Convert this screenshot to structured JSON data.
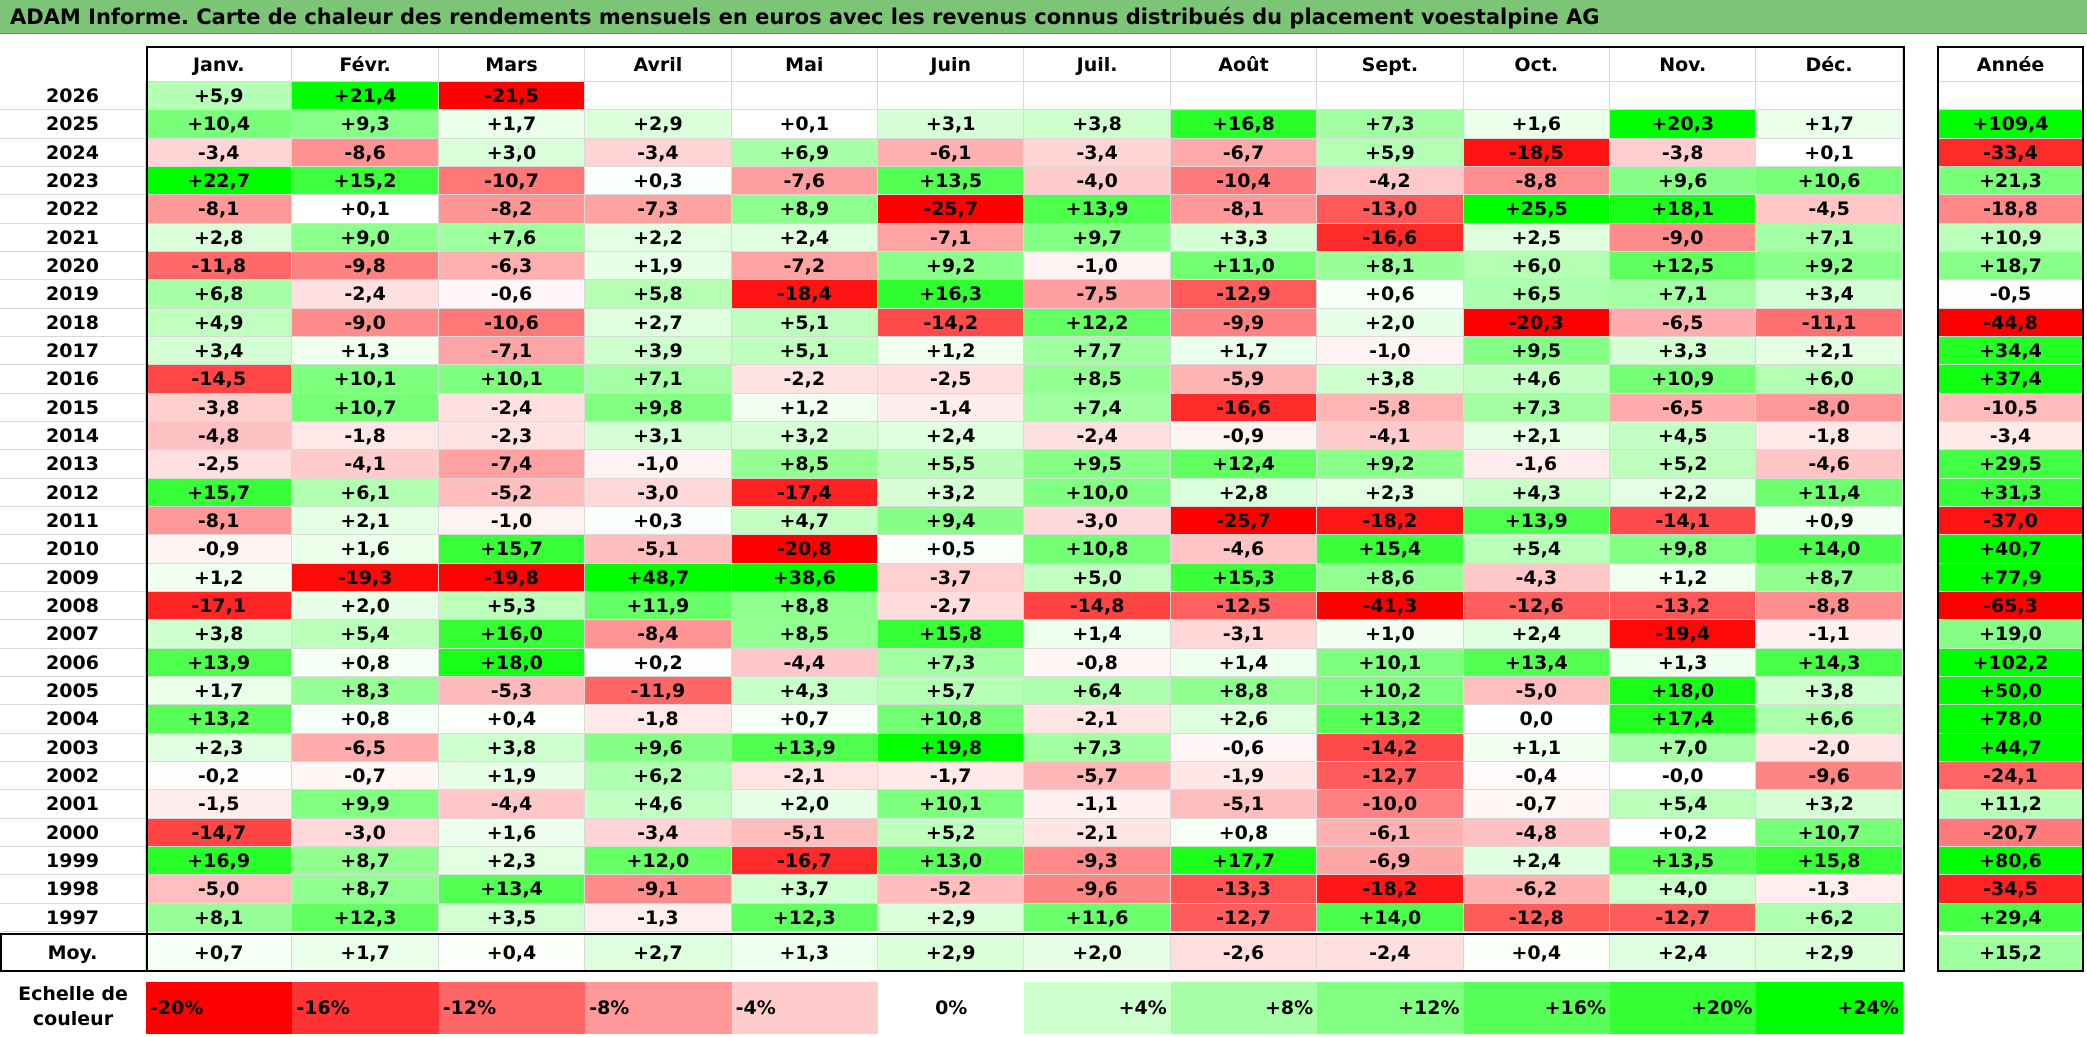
{
  "title": "ADAM Informe. Carte de chaleur des rendements mensuels en euros avec les revenus connus distribués du placement voestalpine AG",
  "chart_data": {
    "type": "heatmap",
    "title": "ADAM Informe. Carte de chaleur des rendements mensuels en euros avec les revenus connus distribués du placement voestalpine AG",
    "columns": [
      "Janv.",
      "Févr.",
      "Mars",
      "Avril",
      "Mai",
      "Juin",
      "Juil.",
      "Août",
      "Sept.",
      "Oct.",
      "Nov.",
      "Déc."
    ],
    "year_header": "Année",
    "rows": [
      {
        "year": "2026",
        "months": [
          "+5,9",
          "+21,4",
          "-21,5",
          "",
          "",
          "",
          "",
          "",
          "",
          "",
          "",
          ""
        ],
        "annual": ""
      },
      {
        "year": "2025",
        "months": [
          "+10,4",
          "+9,3",
          "+1,7",
          "+2,9",
          "+0,1",
          "+3,1",
          "+3,8",
          "+16,8",
          "+7,3",
          "+1,6",
          "+20,3",
          "+1,7"
        ],
        "annual": "+109,4"
      },
      {
        "year": "2024",
        "months": [
          "-3,4",
          "-8,6",
          "+3,0",
          "-3,4",
          "+6,9",
          "-6,1",
          "-3,4",
          "-6,7",
          "+5,9",
          "-18,5",
          "-3,8",
          "+0,1"
        ],
        "annual": "-33,4"
      },
      {
        "year": "2023",
        "months": [
          "+22,7",
          "+15,2",
          "-10,7",
          "+0,3",
          "-7,6",
          "+13,5",
          "-4,0",
          "-10,4",
          "-4,2",
          "-8,8",
          "+9,6",
          "+10,6"
        ],
        "annual": "+21,3"
      },
      {
        "year": "2022",
        "months": [
          "-8,1",
          "+0,1",
          "-8,2",
          "-7,3",
          "+8,9",
          "-25,7",
          "+13,9",
          "-8,1",
          "-13,0",
          "+25,5",
          "+18,1",
          "-4,5"
        ],
        "annual": "-18,8"
      },
      {
        "year": "2021",
        "months": [
          "+2,8",
          "+9,0",
          "+7,6",
          "+2,2",
          "+2,4",
          "-7,1",
          "+9,7",
          "+3,3",
          "-16,6",
          "+2,5",
          "-9,0",
          "+7,1"
        ],
        "annual": "+10,9"
      },
      {
        "year": "2020",
        "months": [
          "-11,8",
          "-9,8",
          "-6,3",
          "+1,9",
          "-7,2",
          "+9,2",
          "-1,0",
          "+11,0",
          "+8,1",
          "+6,0",
          "+12,5",
          "+9,2"
        ],
        "annual": "+18,7"
      },
      {
        "year": "2019",
        "months": [
          "+6,8",
          "-2,4",
          "-0,6",
          "+5,8",
          "-18,4",
          "+16,3",
          "-7,5",
          "-12,9",
          "+0,6",
          "+6,5",
          "+7,1",
          "+3,4"
        ],
        "annual": "-0,5"
      },
      {
        "year": "2018",
        "months": [
          "+4,9",
          "-9,0",
          "-10,6",
          "+2,7",
          "+5,1",
          "-14,2",
          "+12,2",
          "-9,9",
          "+2,0",
          "-20,3",
          "-6,5",
          "-11,1"
        ],
        "annual": "-44,8"
      },
      {
        "year": "2017",
        "months": [
          "+3,4",
          "+1,3",
          "-7,1",
          "+3,9",
          "+5,1",
          "+1,2",
          "+7,7",
          "+1,7",
          "-1,0",
          "+9,5",
          "+3,3",
          "+2,1"
        ],
        "annual": "+34,4"
      },
      {
        "year": "2016",
        "months": [
          "-14,5",
          "+10,1",
          "+10,1",
          "+7,1",
          "-2,2",
          "-2,5",
          "+8,5",
          "-5,9",
          "+3,8",
          "+4,6",
          "+10,9",
          "+6,0"
        ],
        "annual": "+37,4"
      },
      {
        "year": "2015",
        "months": [
          "-3,8",
          "+10,7",
          "-2,4",
          "+9,8",
          "+1,2",
          "-1,4",
          "+7,4",
          "-16,6",
          "-5,8",
          "+7,3",
          "-6,5",
          "-8,0"
        ],
        "annual": "-10,5"
      },
      {
        "year": "2014",
        "months": [
          "-4,8",
          "-1,8",
          "-2,3",
          "+3,1",
          "+3,2",
          "+2,4",
          "-2,4",
          "-0,9",
          "-4,1",
          "+2,1",
          "+4,5",
          "-1,8"
        ],
        "annual": "-3,4"
      },
      {
        "year": "2013",
        "months": [
          "-2,5",
          "-4,1",
          "-7,4",
          "-1,0",
          "+8,5",
          "+5,5",
          "+9,5",
          "+12,4",
          "+9,2",
          "-1,6",
          "+5,2",
          "-4,6"
        ],
        "annual": "+29,5"
      },
      {
        "year": "2012",
        "months": [
          "+15,7",
          "+6,1",
          "-5,2",
          "-3,0",
          "-17,4",
          "+3,2",
          "+10,0",
          "+2,8",
          "+2,3",
          "+4,3",
          "+2,2",
          "+11,4"
        ],
        "annual": "+31,3"
      },
      {
        "year": "2011",
        "months": [
          "-8,1",
          "+2,1",
          "-1,0",
          "+0,3",
          "+4,7",
          "+9,4",
          "-3,0",
          "-25,7",
          "-18,2",
          "+13,9",
          "-14,1",
          "+0,9"
        ],
        "annual": "-37,0"
      },
      {
        "year": "2010",
        "months": [
          "-0,9",
          "+1,6",
          "+15,7",
          "-5,1",
          "-20,8",
          "+0,5",
          "+10,8",
          "-4,6",
          "+15,4",
          "+5,4",
          "+9,8",
          "+14,0"
        ],
        "annual": "+40,7"
      },
      {
        "year": "2009",
        "months": [
          "+1,2",
          "-19,3",
          "-19,8",
          "+48,7",
          "+38,6",
          "-3,7",
          "+5,0",
          "+15,3",
          "+8,6",
          "-4,3",
          "+1,2",
          "+8,7"
        ],
        "annual": "+77,9"
      },
      {
        "year": "2008",
        "months": [
          "-17,1",
          "+2,0",
          "+5,3",
          "+11,9",
          "+8,8",
          "-2,7",
          "-14,8",
          "-12,5",
          "-41,3",
          "-12,6",
          "-13,2",
          "-8,8"
        ],
        "annual": "-65,3"
      },
      {
        "year": "2007",
        "months": [
          "+3,8",
          "+5,4",
          "+16,0",
          "-8,4",
          "+8,5",
          "+15,8",
          "+1,4",
          "-3,1",
          "+1,0",
          "+2,4",
          "-19,4",
          "-1,1"
        ],
        "annual": "+19,0"
      },
      {
        "year": "2006",
        "months": [
          "+13,9",
          "+0,8",
          "+18,0",
          "+0,2",
          "-4,4",
          "+7,3",
          "-0,8",
          "+1,4",
          "+10,1",
          "+13,4",
          "+1,3",
          "+14,3"
        ],
        "annual": "+102,2"
      },
      {
        "year": "2005",
        "months": [
          "+1,7",
          "+8,3",
          "-5,3",
          "-11,9",
          "+4,3",
          "+5,7",
          "+6,4",
          "+8,8",
          "+10,2",
          "-5,0",
          "+18,0",
          "+3,8"
        ],
        "annual": "+50,0"
      },
      {
        "year": "2004",
        "months": [
          "+13,2",
          "+0,8",
          "+0,4",
          "-1,8",
          "+0,7",
          "+10,8",
          "-2,1",
          "+2,6",
          "+13,2",
          "0,0",
          "+17,4",
          "+6,6"
        ],
        "annual": "+78,0"
      },
      {
        "year": "2003",
        "months": [
          "+2,3",
          "-6,5",
          "+3,8",
          "+9,6",
          "+13,9",
          "+19,8",
          "+7,3",
          "-0,6",
          "-14,2",
          "+1,1",
          "+7,0",
          "-2,0"
        ],
        "annual": "+44,7"
      },
      {
        "year": "2002",
        "months": [
          "-0,2",
          "-0,7",
          "+1,9",
          "+6,2",
          "-2,1",
          "-1,7",
          "-5,7",
          "-1,9",
          "-12,7",
          "-0,4",
          "-0,0",
          "-9,6"
        ],
        "annual": "-24,1"
      },
      {
        "year": "2001",
        "months": [
          "-1,5",
          "+9,9",
          "-4,4",
          "+4,6",
          "+2,0",
          "+10,1",
          "-1,1",
          "-5,1",
          "-10,0",
          "-0,7",
          "+5,4",
          "+3,2"
        ],
        "annual": "+11,2"
      },
      {
        "year": "2000",
        "months": [
          "-14,7",
          "-3,0",
          "+1,6",
          "-3,4",
          "-5,1",
          "+5,2",
          "-2,1",
          "+0,8",
          "-6,1",
          "-4,8",
          "+0,2",
          "+10,7"
        ],
        "annual": "-20,7"
      },
      {
        "year": "1999",
        "months": [
          "+16,9",
          "+8,7",
          "+2,3",
          "+12,0",
          "-16,7",
          "+13,0",
          "-9,3",
          "+17,7",
          "-6,9",
          "+2,4",
          "+13,5",
          "+15,8"
        ],
        "annual": "+80,6"
      },
      {
        "year": "1998",
        "months": [
          "-5,0",
          "+8,7",
          "+13,4",
          "-9,1",
          "+3,7",
          "-5,2",
          "-9,6",
          "-13,3",
          "-18,2",
          "-6,2",
          "+4,0",
          "-1,3"
        ],
        "annual": "-34,5"
      },
      {
        "year": "1997",
        "months": [
          "+8,1",
          "+12,3",
          "+3,5",
          "-1,3",
          "+12,3",
          "+2,9",
          "+11,6",
          "-12,7",
          "+14,0",
          "-12,8",
          "-12,7",
          "+6,2"
        ],
        "annual": "+29,4"
      }
    ],
    "average": {
      "label": "Moy.",
      "months": [
        "+0,7",
        "+1,7",
        "+0,4",
        "+2,7",
        "+1,3",
        "+2,9",
        "+2,0",
        "-2,6",
        "-2,4",
        "+0,4",
        "+2,4",
        "+2,9"
      ],
      "annual": "+15,2"
    },
    "scale": {
      "label": "Echelle de couleur",
      "steps": [
        "-20%",
        "-16%",
        "-12%",
        "-8%",
        "-4%",
        "0%",
        "+4%",
        "+8%",
        "+12%",
        "+16%",
        "+20%",
        "+24%"
      ],
      "colors": [
        "#ff0000",
        "#ff3333",
        "#ff6666",
        "#ff9999",
        "#ffcccc",
        "#ffffff",
        "#ccffcc",
        "#a6ffa6",
        "#80ff80",
        "#59ff59",
        "#33ff33",
        "#00ff00"
      ]
    },
    "colors": {
      "negative": "#ff0000",
      "zero": "#ffffff",
      "positive": "#00ff00"
    }
  }
}
